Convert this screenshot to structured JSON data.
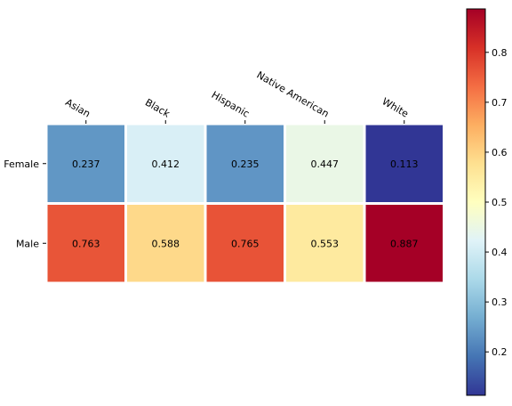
{
  "chart_data": {
    "type": "heatmap",
    "title": "",
    "xlabel": "",
    "ylabel": "",
    "x_categories": [
      "Asian",
      "Black",
      "Hispanic",
      "Native American",
      "White"
    ],
    "y_categories": [
      "Female",
      "Male"
    ],
    "values": [
      [
        0.237,
        0.412,
        0.235,
        0.447,
        0.113
      ],
      [
        0.763,
        0.588,
        0.765,
        0.553,
        0.887
      ]
    ],
    "value_labels": [
      [
        "0.237",
        "0.412",
        "0.235",
        "0.447",
        "0.113"
      ],
      [
        "0.763",
        "0.588",
        "0.765",
        "0.553",
        "0.887"
      ]
    ],
    "colormap": "RdYlBu_r",
    "colorbar": {
      "range": [
        0.113,
        0.887
      ],
      "ticks": [
        0.2,
        0.3,
        0.4,
        0.5,
        0.6,
        0.7,
        0.8
      ],
      "tick_labels": [
        "0.2",
        "0.3",
        "0.4",
        "0.5",
        "0.6",
        "0.7",
        "0.8"
      ],
      "placement": "right"
    },
    "x_tick_position": "top",
    "grid": false,
    "cell_border_color": "#ffffff"
  }
}
